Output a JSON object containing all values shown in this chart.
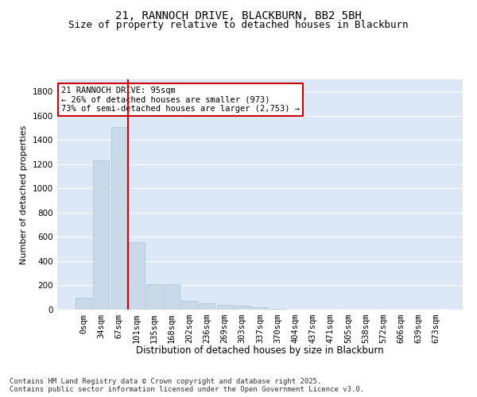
{
  "title1": "21, RANNOCH DRIVE, BLACKBURN, BB2 5BH",
  "title2": "Size of property relative to detached houses in Blackburn",
  "xlabel": "Distribution of detached houses by size in Blackburn",
  "ylabel": "Number of detached properties",
  "categories": [
    "0sqm",
    "34sqm",
    "67sqm",
    "101sqm",
    "135sqm",
    "168sqm",
    "202sqm",
    "236sqm",
    "269sqm",
    "303sqm",
    "337sqm",
    "370sqm",
    "404sqm",
    "437sqm",
    "471sqm",
    "505sqm",
    "538sqm",
    "572sqm",
    "606sqm",
    "639sqm",
    "673sqm"
  ],
  "values": [
    100,
    1230,
    1510,
    560,
    210,
    210,
    75,
    50,
    40,
    30,
    20,
    5,
    0,
    0,
    0,
    0,
    0,
    0,
    0,
    0,
    0
  ],
  "bar_color": "#c9d9e8",
  "bar_edgecolor": "#a8bfd0",
  "vline_color": "#cc0000",
  "vline_pos": 2.5,
  "annotation_text": "21 RANNOCH DRIVE: 95sqm\n← 26% of detached houses are smaller (973)\n73% of semi-detached houses are larger (2,753) →",
  "annotation_fontsize": 7.5,
  "box_edgecolor": "#cc0000",
  "ylim": [
    0,
    1900
  ],
  "yticks": [
    0,
    200,
    400,
    600,
    800,
    1000,
    1200,
    1400,
    1600,
    1800
  ],
  "background_color": "#dce8f5",
  "grid_color": "#ffffff",
  "title1_fontsize": 10,
  "title2_fontsize": 9,
  "xlabel_fontsize": 8.5,
  "ylabel_fontsize": 8,
  "tick_fontsize": 7.5,
  "footnote1": "Contains HM Land Registry data © Crown copyright and database right 2025.",
  "footnote2": "Contains public sector information licensed under the Open Government Licence v3.0.",
  "footnote_fontsize": 6.5
}
